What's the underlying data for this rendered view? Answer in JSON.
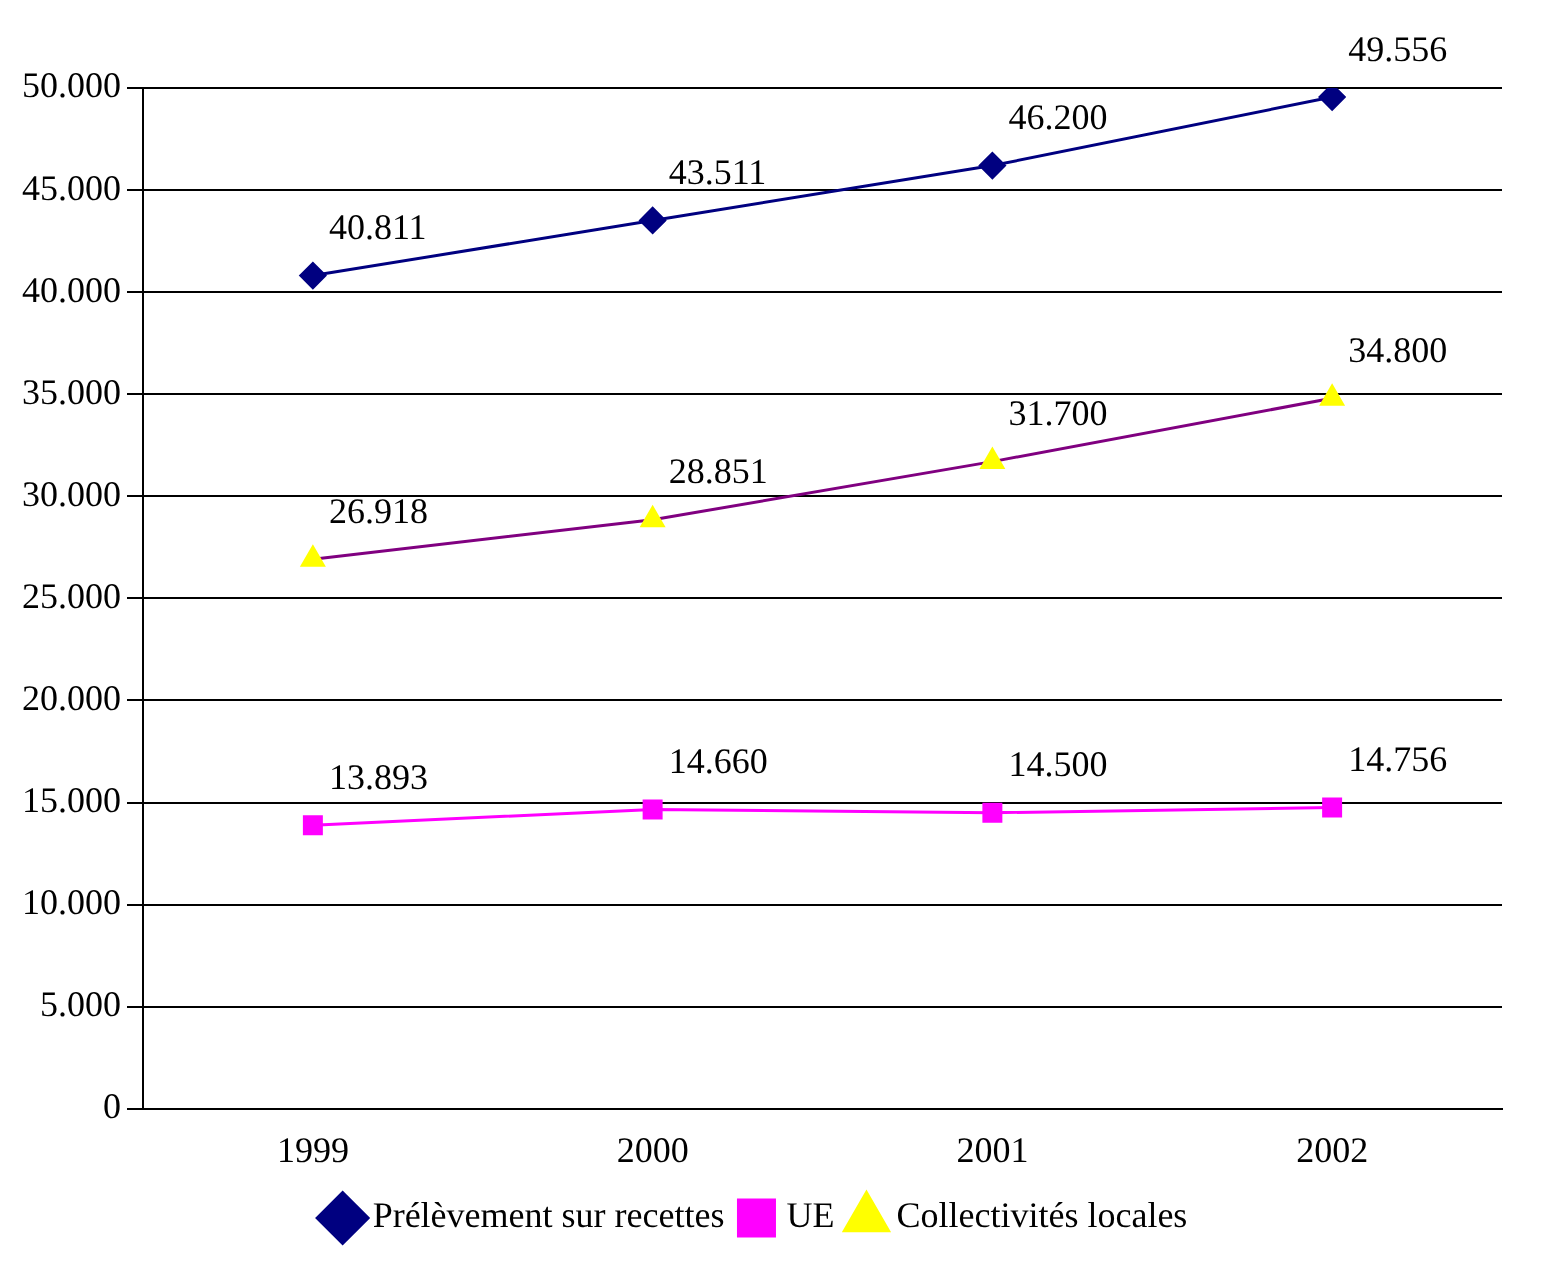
{
  "chart_data": {
    "type": "line",
    "categories": [
      "1999",
      "2000",
      "2001",
      "2002"
    ],
    "series": [
      {
        "name": "Prélèvement sur recettes",
        "color": "#000080",
        "marker": "diamond",
        "values": [
          40811,
          43511,
          46200,
          49556
        ],
        "value_labels": [
          "40.811",
          "43.511",
          "46.200",
          "49.556"
        ]
      },
      {
        "name": "UE",
        "color": "#ff00ff",
        "marker": "square",
        "values": [
          13893,
          14660,
          14500,
          14756
        ],
        "value_labels": [
          "13.893",
          "14.660",
          "14.500",
          "14.756"
        ]
      },
      {
        "name": "Collectivités locales",
        "color": "#800080",
        "colors": [
          "#ffff00",
          "#ffff00",
          "#ffff00",
          "#ffff00"
        ],
        "marker": "triangle",
        "values": [
          26918,
          28851,
          31700,
          34800
        ],
        "value_labels": [
          "26.918",
          "28.851",
          "31.700",
          "34.800"
        ]
      }
    ],
    "ylim": [
      0,
      50000
    ],
    "yticks": [
      0,
      {
        "value": 5000,
        "label": "5.000"
      },
      {
        "value": 10000,
        "label": "10.000"
      },
      {
        "value": 15000,
        "label": "15.000"
      },
      {
        "value": 20000,
        "label": "20.000"
      },
      {
        "value": 25000,
        "label": "25.000"
      },
      {
        "value": 30000,
        "label": "30.000"
      },
      {
        "value": 35000,
        "label": "35.000"
      },
      {
        "value": 40000,
        "label": "40.000"
      },
      {
        "value": 45000,
        "label": "45.000"
      },
      {
        "value": 50000,
        "label": "50.000"
      }
    ],
    "grid": "y",
    "legend": "bottom",
    "line_style": "solid"
  }
}
